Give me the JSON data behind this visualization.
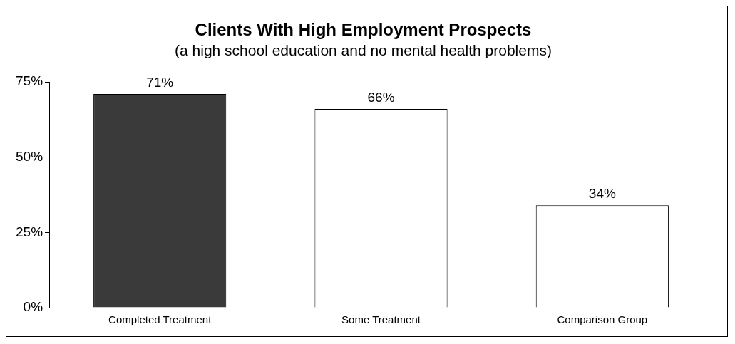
{
  "chart_data": {
    "type": "bar",
    "title": "Clients With High Employment Prospects",
    "subtitle": "(a high school education and no mental health problems)",
    "categories": [
      "Completed Treatment",
      "Some Treatment",
      "Comparison Group"
    ],
    "values": [
      71,
      66,
      34
    ],
    "colors": [
      "#3a3a3a",
      "#ffffff",
      "#ffffff"
    ],
    "value_labels": [
      "71%",
      "66%",
      "34%"
    ],
    "ylim": [
      0,
      75
    ],
    "yticks": [
      {
        "value": 0,
        "label": "0%"
      },
      {
        "value": 25,
        "label": "25%"
      },
      {
        "value": 50,
        "label": "50%"
      },
      {
        "value": 75,
        "label": "75%"
      }
    ],
    "grid": false,
    "legend": false
  }
}
